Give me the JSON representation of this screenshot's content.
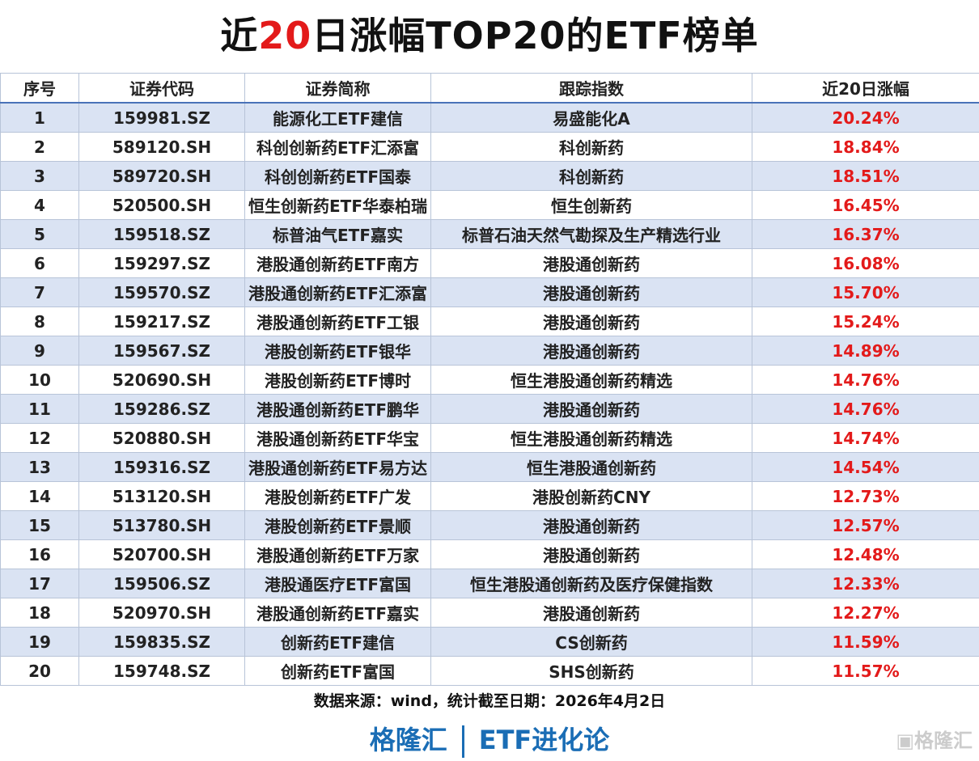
{
  "title": {
    "pre": "近",
    "highlight": "20",
    "post": "日涨幅TOP20的ETF榜单"
  },
  "headers": [
    "序号",
    "证券代码",
    "证券简称",
    "跟踪指数",
    "近20日涨幅"
  ],
  "rows": [
    [
      "1",
      "159981.SZ",
      "能源化工ETF建信",
      "易盛能化A",
      "20.24%"
    ],
    [
      "2",
      "589120.SH",
      "科创创新药ETF汇添富",
      "科创新药",
      "18.84%"
    ],
    [
      "3",
      "589720.SH",
      "科创创新药ETF国泰",
      "科创新药",
      "18.51%"
    ],
    [
      "4",
      "520500.SH",
      "恒生创新药ETF华泰柏瑞",
      "恒生创新药",
      "16.45%"
    ],
    [
      "5",
      "159518.SZ",
      "标普油气ETF嘉实",
      "标普石油天然气勘探及生产精选行业",
      "16.37%"
    ],
    [
      "6",
      "159297.SZ",
      "港股通创新药ETF南方",
      "港股通创新药",
      "16.08%"
    ],
    [
      "7",
      "159570.SZ",
      "港股通创新药ETF汇添富",
      "港股通创新药",
      "15.70%"
    ],
    [
      "8",
      "159217.SZ",
      "港股通创新药ETF工银",
      "港股通创新药",
      "15.24%"
    ],
    [
      "9",
      "159567.SZ",
      "港股创新药ETF银华",
      "港股通创新药",
      "14.89%"
    ],
    [
      "10",
      "520690.SH",
      "港股创新药ETF博时",
      "恒生港股通创新药精选",
      "14.76%"
    ],
    [
      "11",
      "159286.SZ",
      "港股通创新药ETF鹏华",
      "港股通创新药",
      "14.76%"
    ],
    [
      "12",
      "520880.SH",
      "港股通创新药ETF华宝",
      "恒生港股通创新药精选",
      "14.74%"
    ],
    [
      "13",
      "159316.SZ",
      "港股通创新药ETF易方达",
      "恒生港股通创新药",
      "14.54%"
    ],
    [
      "14",
      "513120.SH",
      "港股创新药ETF广发",
      "港股创新药CNY",
      "12.73%"
    ],
    [
      "15",
      "513780.SH",
      "港股创新药ETF景顺",
      "港股通创新药",
      "12.57%"
    ],
    [
      "16",
      "520700.SH",
      "港股通创新药ETF万家",
      "港股通创新药",
      "12.48%"
    ],
    [
      "17",
      "159506.SZ",
      "港股通医疗ETF富国",
      "恒生港股通创新药及医疗保健指数",
      "12.33%"
    ],
    [
      "18",
      "520970.SH",
      "港股通创新药ETF嘉实",
      "港股通创新药",
      "12.27%"
    ],
    [
      "19",
      "159835.SZ",
      "创新药ETF建信",
      "CS创新药",
      "11.59%"
    ],
    [
      "20",
      "159748.SZ",
      "创新药ETF富国",
      "SHS创新药",
      "11.57%"
    ]
  ],
  "source": "数据来源：wind，统计截至日期：2026年4月2日",
  "brand": {
    "left": "格隆汇",
    "right": "ETF进化论"
  },
  "watermark": "格隆汇",
  "colors": {
    "accent": "#e31a1a",
    "brand": "#1a6db5",
    "stripe": "#dae3f3"
  }
}
